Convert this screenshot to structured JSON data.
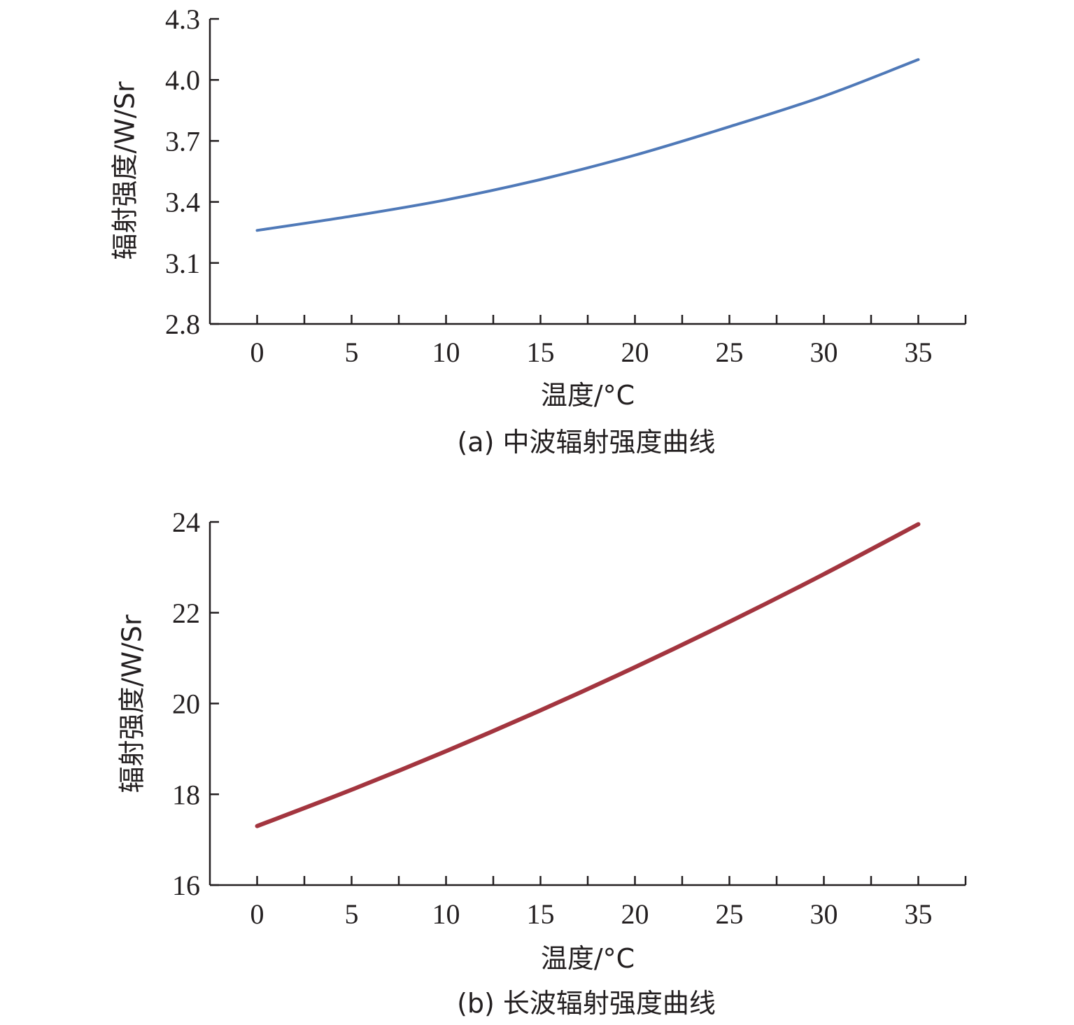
{
  "chart_data": [
    {
      "type": "line",
      "caption": "(a) 中波辐射强度曲线",
      "xlabel": "温度/°C",
      "ylabel": "辐射强度/W/Sr",
      "xlim": [
        -2.5,
        37.5
      ],
      "ylim": [
        2.8,
        4.3
      ],
      "xticks": [
        0,
        5,
        10,
        15,
        20,
        25,
        30,
        35
      ],
      "yticks": [
        "4.3",
        "4.0",
        "3.7",
        "3.4",
        "3.1",
        "2.8"
      ],
      "grid": false,
      "series": [
        {
          "color": "#4f79b8",
          "x": [
            0,
            5,
            10,
            15,
            20,
            25,
            30,
            35
          ],
          "y": [
            3.26,
            3.33,
            3.41,
            3.51,
            3.63,
            3.77,
            3.92,
            4.1
          ]
        }
      ]
    },
    {
      "type": "line",
      "caption": "(b) 长波辐射强度曲线",
      "xlabel": "温度/°C",
      "ylabel": "辐射强度/W/Sr",
      "xlim": [
        -2.5,
        37.5
      ],
      "ylim": [
        16,
        24
      ],
      "xticks": [
        0,
        5,
        10,
        15,
        20,
        25,
        30,
        35
      ],
      "yticks": [
        "24",
        "22",
        "20",
        "18",
        "16"
      ],
      "grid": false,
      "series": [
        {
          "color": "#a3353f",
          "x": [
            0,
            5,
            10,
            15,
            20,
            25,
            30,
            35
          ],
          "y": [
            17.3,
            18.1,
            18.95,
            19.85,
            20.8,
            21.8,
            22.85,
            23.95
          ]
        }
      ]
    }
  ]
}
